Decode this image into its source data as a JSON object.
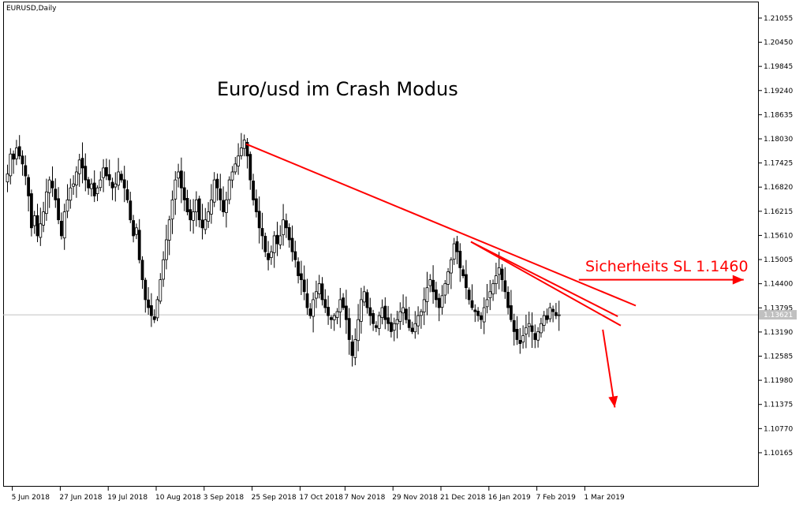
{
  "window": {
    "symbol_label": "EURUSD,Daily"
  },
  "chart_data": {
    "type": "candlestick",
    "title": "Euro/usd im Crash Modus",
    "current_price_label": "1.13621",
    "ylim": [
      1.0965,
      1.2135
    ],
    "y_ticks": [
      "1.21055",
      "1.20450",
      "1.19845",
      "1.19240",
      "1.18635",
      "1.18030",
      "1.17425",
      "1.16820",
      "1.16215",
      "1.15610",
      "1.15005",
      "1.14400",
      "1.13795",
      "1.13190",
      "1.12585",
      "1.11980",
      "1.11375",
      "1.10770",
      "1.10165"
    ],
    "x_ticks": [
      {
        "label": "5 Jun 2018",
        "bar": 2
      },
      {
        "label": "27 Jun 2018",
        "bar": 18
      },
      {
        "label": "19 Jul 2018",
        "bar": 34
      },
      {
        "label": "10 Aug 2018",
        "bar": 50
      },
      {
        "label": "3 Sep 2018",
        "bar": 66
      },
      {
        "label": "25 Sep 2018",
        "bar": 82
      },
      {
        "label": "17 Oct 2018",
        "bar": 98
      },
      {
        "label": "7 Nov 2018",
        "bar": 113
      },
      {
        "label": "29 Nov 2018",
        "bar": 129
      },
      {
        "label": "21 Dec 2018",
        "bar": 145
      },
      {
        "label": "16 Jan 2019",
        "bar": 161
      },
      {
        "label": "7 Feb 2019",
        "bar": 177
      },
      {
        "label": "1 Mar 2019",
        "bar": 193
      }
    ],
    "closes": [
      1.1715,
      1.1765,
      1.1752,
      1.178,
      1.176,
      1.174,
      1.171,
      1.166,
      1.158,
      1.161,
      1.156,
      1.159,
      1.162,
      1.167,
      1.17,
      1.168,
      1.165,
      1.16,
      1.156,
      1.162,
      1.165,
      1.168,
      1.169,
      1.172,
      1.175,
      1.173,
      1.17,
      1.168,
      1.169,
      1.166,
      1.168,
      1.17,
      1.173,
      1.171,
      1.17,
      1.168,
      1.169,
      1.172,
      1.17,
      1.168,
      1.165,
      1.16,
      1.156,
      1.158,
      1.15,
      1.145,
      1.14,
      1.138,
      1.136,
      1.135,
      1.14,
      1.145,
      1.15,
      1.155,
      1.16,
      1.165,
      1.17,
      1.172,
      1.168,
      1.165,
      1.162,
      1.16,
      1.162,
      1.165,
      1.16,
      1.158,
      1.16,
      1.162,
      1.165,
      1.17,
      1.168,
      1.165,
      1.162,
      1.165,
      1.17,
      1.172,
      1.174,
      1.176,
      1.178,
      1.18,
      1.176,
      1.17,
      1.165,
      1.162,
      1.158,
      1.156,
      1.152,
      1.15,
      1.152,
      1.156,
      1.154,
      1.156,
      1.16,
      1.158,
      1.155,
      1.152,
      1.15,
      1.146,
      1.145,
      1.142,
      1.138,
      1.136,
      1.14,
      1.142,
      1.144,
      1.14,
      1.138,
      1.136,
      1.135,
      1.136,
      1.137,
      1.14,
      1.138,
      1.135,
      1.13,
      1.126,
      1.13,
      1.135,
      1.14,
      1.142,
      1.138,
      1.136,
      1.134,
      1.133,
      1.136,
      1.138,
      1.135,
      1.134,
      1.132,
      1.134,
      1.135,
      1.137,
      1.138,
      1.135,
      1.133,
      1.132,
      1.134,
      1.136,
      1.137,
      1.14,
      1.143,
      1.145,
      1.142,
      1.14,
      1.138,
      1.141,
      1.144,
      1.147,
      1.15,
      1.154,
      1.152,
      1.148,
      1.146,
      1.143,
      1.14,
      1.138,
      1.137,
      1.136,
      1.135,
      1.138,
      1.14,
      1.142,
      1.144,
      1.146,
      1.148,
      1.145,
      1.142,
      1.138,
      1.135,
      1.132,
      1.13,
      1.129,
      1.131,
      1.133,
      1.134,
      1.132,
      1.13,
      1.132,
      1.134,
      1.136,
      1.135,
      1.138,
      1.137,
      1.136,
      1.1362
    ],
    "annotations": {
      "stop_loss_label": "Sicherheits SL 1.1460",
      "trendlines": [
        {
          "from": {
            "bar": 80,
            "price": 1.179
          },
          "to": {
            "bar": 210,
            "price": 1.1385
          }
        },
        {
          "from": {
            "bar": 155,
            "price": 1.1545
          },
          "to": {
            "bar": 205,
            "price": 1.1335
          }
        },
        {
          "from": {
            "bar": 155,
            "price": 1.1545
          },
          "to": {
            "bar": 204,
            "price": 1.1358
          }
        }
      ],
      "stop_loss_arrow": {
        "from": {
          "bar": 191,
          "price": 1.145
        },
        "to": {
          "bar": 246,
          "price": 1.145
        }
      },
      "target_arrow": {
        "from": {
          "bar": 199,
          "price": 1.1325
        },
        "to": {
          "bar": 203,
          "price": 1.113
        }
      }
    },
    "legend": "none",
    "grid": false
  }
}
